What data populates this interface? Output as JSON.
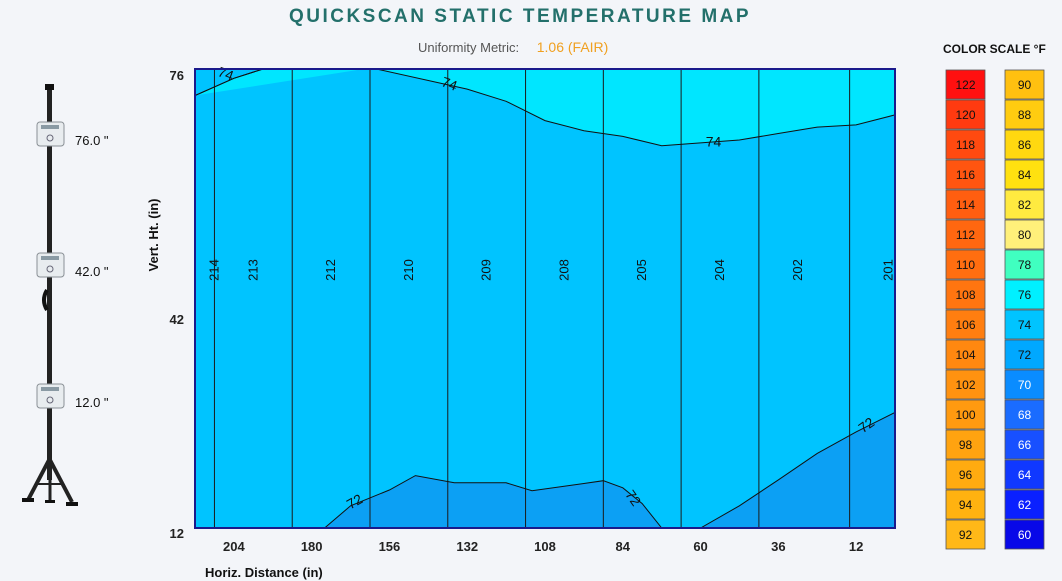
{
  "header": {
    "title": "QUICKSCAN STATIC TEMPERATURE MAP",
    "uniformity_label": "Uniformity Metric:",
    "uniformity_value": "1.06 (FAIR)"
  },
  "stand": {
    "sensors": [
      {
        "label": "76.0 \""
      },
      {
        "label": "42.0 \""
      },
      {
        "label": "12.0 \""
      }
    ]
  },
  "chart_data": {
    "type": "heatmap",
    "xlabel": "Horiz. Distance (in)",
    "ylabel": "Vert. Ht. (in)",
    "x_ticks": [
      "204",
      "180",
      "156",
      "132",
      "108",
      "84",
      "60",
      "36",
      "12"
    ],
    "x_tick_values": [
      204,
      180,
      156,
      132,
      108,
      84,
      60,
      36,
      12
    ],
    "y_ticks": [
      "76",
      "42",
      "12"
    ],
    "y_tick_values": [
      76,
      42,
      12
    ],
    "xlim": [
      216,
      0
    ],
    "ylim": [
      12,
      76
    ],
    "measurement_columns": [
      {
        "label": "214",
        "x": 210
      },
      {
        "label": "213",
        "x": 198
      },
      {
        "label": "212",
        "x": 174
      },
      {
        "label": "210",
        "x": 150
      },
      {
        "label": "209",
        "x": 126
      },
      {
        "label": "208",
        "x": 102
      },
      {
        "label": "205",
        "x": 78
      },
      {
        "label": "204",
        "x": 54
      },
      {
        "label": "202",
        "x": 30
      },
      {
        "label": "201",
        "x": 2
      }
    ],
    "contours": [
      {
        "level": "74",
        "label": "74",
        "side": "upper",
        "points": [
          [
            216,
            72.3
          ],
          [
            204,
            74.7
          ],
          [
            195,
            76
          ],
          [
            160,
            76
          ],
          [
            132,
            73.2
          ],
          [
            120,
            71.5
          ],
          [
            108,
            68.8
          ],
          [
            96,
            67.4
          ],
          [
            84,
            66.6
          ],
          [
            72,
            65.3
          ],
          [
            60,
            65.7
          ],
          [
            48,
            66.1
          ],
          [
            36,
            67
          ],
          [
            24,
            67.9
          ],
          [
            12,
            68.2
          ],
          [
            0,
            69.6
          ]
        ]
      },
      {
        "label": "74",
        "side": "upper-left",
        "points": [
          [
            216,
            76
          ],
          [
            195,
            76
          ],
          [
            204,
            74.7
          ],
          [
            216,
            72.3
          ]
        ]
      },
      {
        "label": "72",
        "side": "lower",
        "points": [
          [
            176,
            12
          ],
          [
            168,
            15.1
          ],
          [
            156,
            17.3
          ],
          [
            148,
            19.3
          ],
          [
            136,
            18.3
          ],
          [
            120,
            18.3
          ],
          [
            112,
            17.2
          ],
          [
            96,
            18.2
          ],
          [
            90,
            18.6
          ],
          [
            84,
            17.6
          ],
          [
            78,
            15.4
          ],
          [
            72,
            12
          ]
        ]
      },
      {
        "label": "72",
        "side": "lower",
        "points": [
          [
            60,
            12
          ],
          [
            48,
            15.1
          ],
          [
            36,
            18.7
          ],
          [
            24,
            22.4
          ],
          [
            12,
            25.4
          ],
          [
            0,
            28.1
          ]
        ]
      }
    ],
    "colors": {
      "t76": "#00e6ff",
      "t74": "#00c4ff",
      "t72": "#0ca0f4",
      "contour": "#111111",
      "border": "#1a1a8c"
    },
    "color_scale": {
      "title": "COLOR SCALE  °F",
      "left": [
        {
          "value": "122",
          "color": "#ff1010"
        },
        {
          "value": "120",
          "color": "#ff3a10"
        },
        {
          "value": "118",
          "color": "#ff4a10"
        },
        {
          "value": "116",
          "color": "#ff5510"
        },
        {
          "value": "114",
          "color": "#ff5e10"
        },
        {
          "value": "112",
          "color": "#ff6710"
        },
        {
          "value": "110",
          "color": "#ff6e10"
        },
        {
          "value": "108",
          "color": "#ff7510"
        },
        {
          "value": "106",
          "color": "#ff7e10"
        },
        {
          "value": "104",
          "color": "#ff8810"
        },
        {
          "value": "102",
          "color": "#ff9210"
        },
        {
          "value": "100",
          "color": "#ff9a10"
        },
        {
          "value": "98",
          "color": "#ffa310"
        },
        {
          "value": "96",
          "color": "#ffab10"
        },
        {
          "value": "94",
          "color": "#ffb210"
        },
        {
          "value": "92",
          "color": "#ffb818"
        }
      ],
      "right": [
        {
          "value": "90",
          "color": "#ffc010"
        },
        {
          "value": "88",
          "color": "#ffcc10"
        },
        {
          "value": "86",
          "color": "#ffd810"
        },
        {
          "value": "84",
          "color": "#ffe110"
        },
        {
          "value": "82",
          "color": "#ffea40"
        },
        {
          "value": "80",
          "color": "#fff07a"
        },
        {
          "value": "78",
          "color": "#40ffc0"
        },
        {
          "value": "76",
          "color": "#00f0ff"
        },
        {
          "value": "74",
          "color": "#00c4ff"
        },
        {
          "value": "72",
          "color": "#00a8ff"
        },
        {
          "value": "70",
          "color": "#0a8cff"
        },
        {
          "value": "68",
          "color": "#1a6cff"
        },
        {
          "value": "66",
          "color": "#1850ff"
        },
        {
          "value": "64",
          "color": "#1038ff"
        },
        {
          "value": "62",
          "color": "#0a20ff"
        },
        {
          "value": "60",
          "color": "#0808e8"
        }
      ]
    }
  }
}
